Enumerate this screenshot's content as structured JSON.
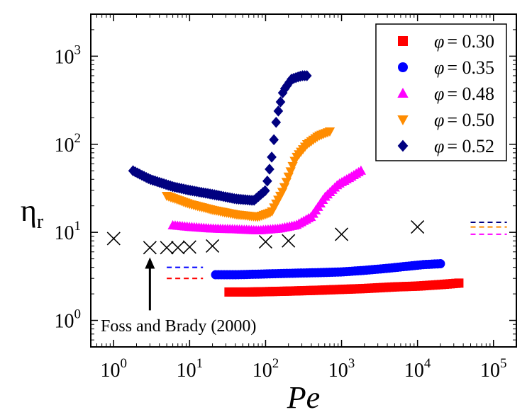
{
  "chart_data": {
    "type": "scatter",
    "title": "",
    "xlabel": "Pe",
    "ylabel_base": "η",
    "ylabel_sub": "r",
    "xscale": "log",
    "yscale": "log",
    "xlim": [
      0.5,
      200000
    ],
    "ylim": [
      0.5,
      3000
    ],
    "grid": false,
    "legend_position": "top-right",
    "x_ticks": [
      {
        "value": 1,
        "base": "10",
        "exp": "0"
      },
      {
        "value": 10,
        "base": "10",
        "exp": "1"
      },
      {
        "value": 100,
        "base": "10",
        "exp": "2"
      },
      {
        "value": 1000,
        "base": "10",
        "exp": "3"
      },
      {
        "value": 10000,
        "base": "10",
        "exp": "4"
      },
      {
        "value": 100000,
        "base": "10",
        "exp": "5"
      }
    ],
    "y_ticks": [
      {
        "value": 1,
        "base": "10",
        "exp": "0"
      },
      {
        "value": 10,
        "base": "10",
        "exp": "1"
      },
      {
        "value": 100,
        "base": "10",
        "exp": "2"
      },
      {
        "value": 1000,
        "base": "10",
        "exp": "3"
      }
    ],
    "series": [
      {
        "name": "φ = 0.30",
        "legend_symbol": "φ",
        "legend_value": "= 0.30",
        "marker": "square",
        "color": "#ff0000",
        "x": [
          33,
          60,
          100,
          200,
          500,
          1000,
          2000,
          5000,
          10000,
          20000,
          35000
        ],
        "y": [
          2.1,
          2.1,
          2.12,
          2.15,
          2.2,
          2.25,
          2.3,
          2.4,
          2.45,
          2.55,
          2.65
        ]
      },
      {
        "name": "φ = 0.35",
        "legend_symbol": "φ",
        "legend_value": "= 0.35",
        "marker": "circle",
        "color": "#0000ff",
        "x": [
          22,
          40,
          80,
          150,
          300,
          600,
          1000,
          2000,
          4000,
          7000,
          12000,
          20000
        ],
        "y": [
          3.3,
          3.3,
          3.35,
          3.4,
          3.45,
          3.5,
          3.55,
          3.7,
          3.9,
          4.1,
          4.3,
          4.4
        ]
      },
      {
        "name": "φ = 0.48",
        "legend_symbol": "φ",
        "legend_value": "= 0.48",
        "marker": "triangle-up",
        "color": "#ff00ff",
        "x": [
          6,
          10,
          20,
          40,
          80,
          150,
          250,
          400,
          600,
          900,
          1300,
          1800
        ],
        "y": [
          12,
          11.5,
          11,
          10.8,
          10.5,
          11,
          12,
          15,
          25,
          35,
          42,
          50
        ]
      },
      {
        "name": "φ = 0.50",
        "legend_symbol": "φ",
        "legend_value": "= 0.50",
        "marker": "triangle-down",
        "color": "#ff8c00",
        "x": [
          5,
          10,
          20,
          40,
          80,
          120,
          170,
          250,
          350,
          500,
          700
        ],
        "y": [
          26,
          21,
          18,
          16,
          15,
          17,
          30,
          70,
          100,
          125,
          140
        ]
      },
      {
        "name": "φ = 0.52",
        "legend_symbol": "φ",
        "legend_value": "= 0.52",
        "marker": "diamond",
        "color": "#000080",
        "x": [
          1.8,
          3,
          6,
          10,
          20,
          40,
          70,
          100,
          120,
          140,
          170,
          220,
          300,
          350
        ],
        "y": [
          50,
          40,
          33,
          30,
          27,
          24,
          23,
          30,
          70,
          200,
          400,
          550,
          600,
          600
        ]
      },
      {
        "name": "Foss and Brady (2000)",
        "marker": "x",
        "color": "#000000",
        "x": [
          1,
          3,
          5,
          7,
          10,
          20,
          100,
          200,
          1000,
          10000
        ],
        "y": [
          8.5,
          6.7,
          6.7,
          6.7,
          6.8,
          7.0,
          7.8,
          8.0,
          9.5,
          11.5
        ]
      }
    ],
    "dashed_refs": [
      {
        "color": "#0000ff",
        "x": [
          5,
          15
        ],
        "y": 4.0
      },
      {
        "color": "#ff0000",
        "x": [
          5,
          15
        ],
        "y": 3.0
      },
      {
        "color": "#000080",
        "x": [
          50000,
          150000
        ],
        "y": 13.0
      },
      {
        "color": "#ff8c00",
        "x": [
          50000,
          150000
        ],
        "y": 11.5
      },
      {
        "color": "#ff00ff",
        "x": [
          50000,
          150000
        ],
        "y": 9.5
      }
    ],
    "annotation": {
      "text": "Foss and Brady (2000)",
      "arrow_tip_x": 3,
      "arrow_tip_y": 5.2,
      "arrow_tail_y": 1.3
    }
  }
}
